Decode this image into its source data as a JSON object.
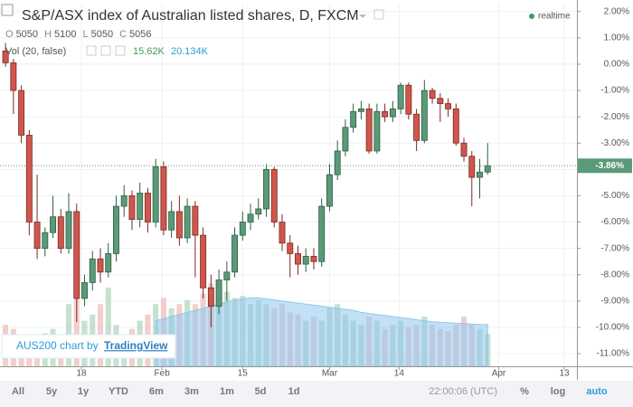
{
  "chart_data": {
    "type": "candlestick",
    "title": "S&P/ASX index of Australian listed shares, D, FXCM",
    "ohlc_legend": [
      "O",
      "5050",
      "H",
      "5100",
      "L",
      "5050",
      "C",
      "5056"
    ],
    "volume_title": "Vol (20, false)",
    "volume_last_label": "15.62K",
    "volume_ma_last_label": "20.134K",
    "realtime": "realtime",
    "last_label": "-3.86%",
    "watermark": [
      "AUS200 chart by",
      "TradingView"
    ],
    "up_color": "#5b9a77",
    "down_color": "#d0564c",
    "up_edge": "#2f5e44",
    "down_edge": "#7a2a24",
    "volume_up_color": "#b9d9c4",
    "volume_down_color": "#efc3bf",
    "ma_color": "#8fc6ee",
    "grid": true,
    "open": [
      0.5,
      0.05,
      -1.0,
      -2.7,
      -6.0,
      -7.0,
      -6.4,
      -5.8,
      -7.0,
      -5.6,
      -8.9,
      -8.3,
      -7.4,
      -7.9,
      -7.2,
      -5.4,
      -5.0,
      -5.9,
      -4.9,
      -6.0,
      -3.9,
      -6.3,
      -5.6,
      -6.6,
      -5.4,
      -6.5,
      -8.5,
      -9.2,
      -8.2,
      -7.9,
      -6.5,
      -6.0,
      -5.7,
      -5.5,
      -4.0,
      -6.0,
      -6.8,
      -7.2,
      -7.6,
      -7.3,
      -7.5,
      -5.4,
      -4.2,
      -3.3,
      -2.4,
      -1.8,
      -1.7,
      -3.3,
      -1.8,
      -2.0,
      -1.7,
      -0.8,
      -1.9,
      -2.9,
      -1.0,
      -1.3,
      -1.5,
      -1.7,
      -3.0,
      -3.5,
      -4.3,
      -4.1
    ],
    "high": [
      0.8,
      0.2,
      -0.8,
      -2.5,
      -4.2,
      -6.2,
      -5.0,
      -5.5,
      -4.9,
      -5.3,
      -8.0,
      -7.1,
      -7.0,
      -6.8,
      -5.0,
      -4.6,
      -4.8,
      -4.5,
      -4.7,
      -3.6,
      -3.7,
      -5.2,
      -5.0,
      -5.1,
      -5.2,
      -6.2,
      -8.0,
      -7.8,
      -7.5,
      -6.2,
      -5.6,
      -5.3,
      -5.1,
      -3.8,
      -3.9,
      -5.7,
      -6.5,
      -6.9,
      -7.0,
      -7.0,
      -5.1,
      -3.8,
      -2.9,
      -2.1,
      -1.5,
      -1.4,
      -1.5,
      -1.5,
      -1.5,
      -1.4,
      -0.7,
      -0.7,
      -1.7,
      -0.6,
      -0.9,
      -1.1,
      -1.3,
      -1.5,
      -2.8,
      -3.3,
      -3.6,
      -3.0
    ],
    "low": [
      -0.1,
      -1.9,
      -3.0,
      -6.5,
      -7.4,
      -7.3,
      -6.6,
      -7.2,
      -7.2,
      -9.8,
      -9.2,
      -8.6,
      -8.3,
      -8.1,
      -7.5,
      -5.8,
      -6.3,
      -6.2,
      -6.4,
      -6.2,
      -6.5,
      -6.6,
      -6.9,
      -6.8,
      -8.1,
      -8.9,
      -10.0,
      -9.5,
      -9.0,
      -8.1,
      -6.7,
      -6.3,
      -5.9,
      -5.8,
      -6.2,
      -7.1,
      -8.1,
      -8.0,
      -7.9,
      -7.8,
      -7.7,
      -5.6,
      -4.4,
      -3.5,
      -2.6,
      -2.1,
      -3.4,
      -3.4,
      -2.2,
      -2.2,
      -1.9,
      -2.1,
      -3.3,
      -3.0,
      -1.5,
      -2.2,
      -2.0,
      -3.1,
      -3.7,
      -5.4,
      -5.1,
      -4.2
    ],
    "close": [
      0.05,
      -1.0,
      -2.7,
      -6.0,
      -7.0,
      -6.4,
      -5.8,
      -7.0,
      -5.6,
      -8.9,
      -8.3,
      -7.4,
      -7.9,
      -7.2,
      -5.4,
      -5.0,
      -5.9,
      -4.9,
      -6.0,
      -3.9,
      -6.3,
      -5.6,
      -6.6,
      -5.4,
      -6.5,
      -8.5,
      -9.2,
      -8.2,
      -7.9,
      -6.5,
      -6.0,
      -5.7,
      -5.5,
      -4.0,
      -6.0,
      -6.8,
      -7.2,
      -7.6,
      -7.3,
      -7.5,
      -5.4,
      -4.2,
      -3.3,
      -2.4,
      -1.8,
      -1.7,
      -3.3,
      -1.8,
      -2.0,
      -1.7,
      -0.8,
      -1.9,
      -2.9,
      -1.0,
      -1.3,
      -1.5,
      -1.7,
      -3.0,
      -3.5,
      -4.3,
      -4.1,
      -3.86
    ],
    "volume": [
      20,
      18,
      15,
      14,
      12,
      16,
      18,
      14,
      30,
      35,
      22,
      25,
      30,
      38,
      20,
      15,
      18,
      22,
      25,
      30,
      33,
      28,
      30,
      32,
      30,
      35,
      40,
      38,
      36,
      33,
      34,
      30,
      32,
      30,
      28,
      30,
      26,
      25,
      22,
      24,
      22,
      28,
      30,
      25,
      22,
      20,
      24,
      22,
      18,
      20,
      22,
      19,
      20,
      24,
      20,
      18,
      17,
      20,
      24,
      20,
      18,
      15.62
    ],
    "volume_ma": [
      null,
      null,
      null,
      null,
      null,
      null,
      null,
      null,
      null,
      null,
      null,
      null,
      null,
      null,
      null,
      null,
      null,
      null,
      null,
      22,
      23,
      24,
      25,
      26,
      27,
      28,
      29,
      30,
      31,
      32,
      32.5,
      33,
      33,
      32.5,
      32,
      31.5,
      31,
      30.5,
      30,
      29.5,
      29,
      28.5,
      28,
      27.5,
      27,
      26,
      25.5,
      25,
      24.5,
      24,
      23.5,
      23,
      22.5,
      22,
      21.5,
      21.2,
      21,
      20.8,
      20.6,
      20.4,
      20.2,
      20.134
    ],
    "volume_lim": [
      0,
      175
    ],
    "xlim": [
      -0.7,
      72.3
    ],
    "xticks": [
      {
        "value": 9.6,
        "label": "18"
      },
      {
        "value": 19.8,
        "label": "Feb"
      },
      {
        "value": 30.0,
        "label": "15"
      },
      {
        "value": 41.0,
        "label": "Mar"
      },
      {
        "value": 49.8,
        "label": "14"
      },
      {
        "value": 62.4,
        "label": "Apr"
      },
      {
        "value": 70.7,
        "label": "13"
      }
    ],
    "ylim": [
      -11.48,
      2.3
    ],
    "yticks": [
      {
        "value": 2,
        "label": "2.00%"
      },
      {
        "value": 1,
        "label": "1.00%"
      },
      {
        "value": 0,
        "label": "0.00%"
      },
      {
        "value": -1,
        "label": "-1.00%"
      },
      {
        "value": -2,
        "label": "-2.00%"
      },
      {
        "value": -3,
        "label": "-3.00%"
      },
      {
        "value": -4,
        "label": "-4.00%"
      },
      {
        "value": -5,
        "label": "-5.00%"
      },
      {
        "value": -6,
        "label": "-6.00%"
      },
      {
        "value": -7,
        "label": "-7.00%"
      },
      {
        "value": -8,
        "label": "-8.00%"
      },
      {
        "value": -9,
        "label": "-9.00%"
      },
      {
        "value": -10,
        "label": "-10.00%"
      },
      {
        "value": -11,
        "label": "-11.00%"
      }
    ],
    "toolbar": [
      "All",
      "5y",
      "1y",
      "YTD",
      "6m",
      "3m",
      "1m",
      "5d",
      "1d"
    ],
    "clock": "22:00:06 (UTC)",
    "toolbar_right": [
      "%",
      "log",
      "auto"
    ]
  }
}
